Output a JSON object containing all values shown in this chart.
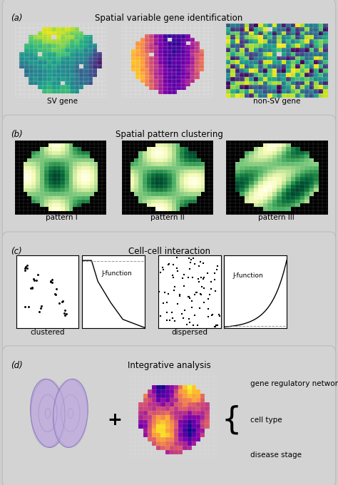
{
  "panel_a_title": "Spatial variable gene identification",
  "panel_b_title": "Spatial pattern clustering",
  "panel_c_title": "Cell-cell interaction",
  "panel_d_title": "Integrative analysis",
  "panel_labels": [
    "(a)",
    "(b)",
    "(c)",
    "(d)"
  ],
  "sv_gene_label": "SV gene",
  "non_sv_label": "non-SV gene",
  "pattern_labels": [
    "pattern I",
    "pattern II",
    "pattern III"
  ],
  "clustered_label": "clustered",
  "dispersed_label": "dispersed",
  "j_function_label": "J-function",
  "integrative_labels": [
    "gene regulatory network",
    "cell type",
    "disease stage"
  ],
  "plus_sign": "+",
  "bg_color": "#cecece",
  "panel_bg": "#d3d3d3",
  "white": "#ffffff",
  "black": "#000000",
  "fig_width": 4.74,
  "fig_height": 6.8,
  "dpi": 100
}
